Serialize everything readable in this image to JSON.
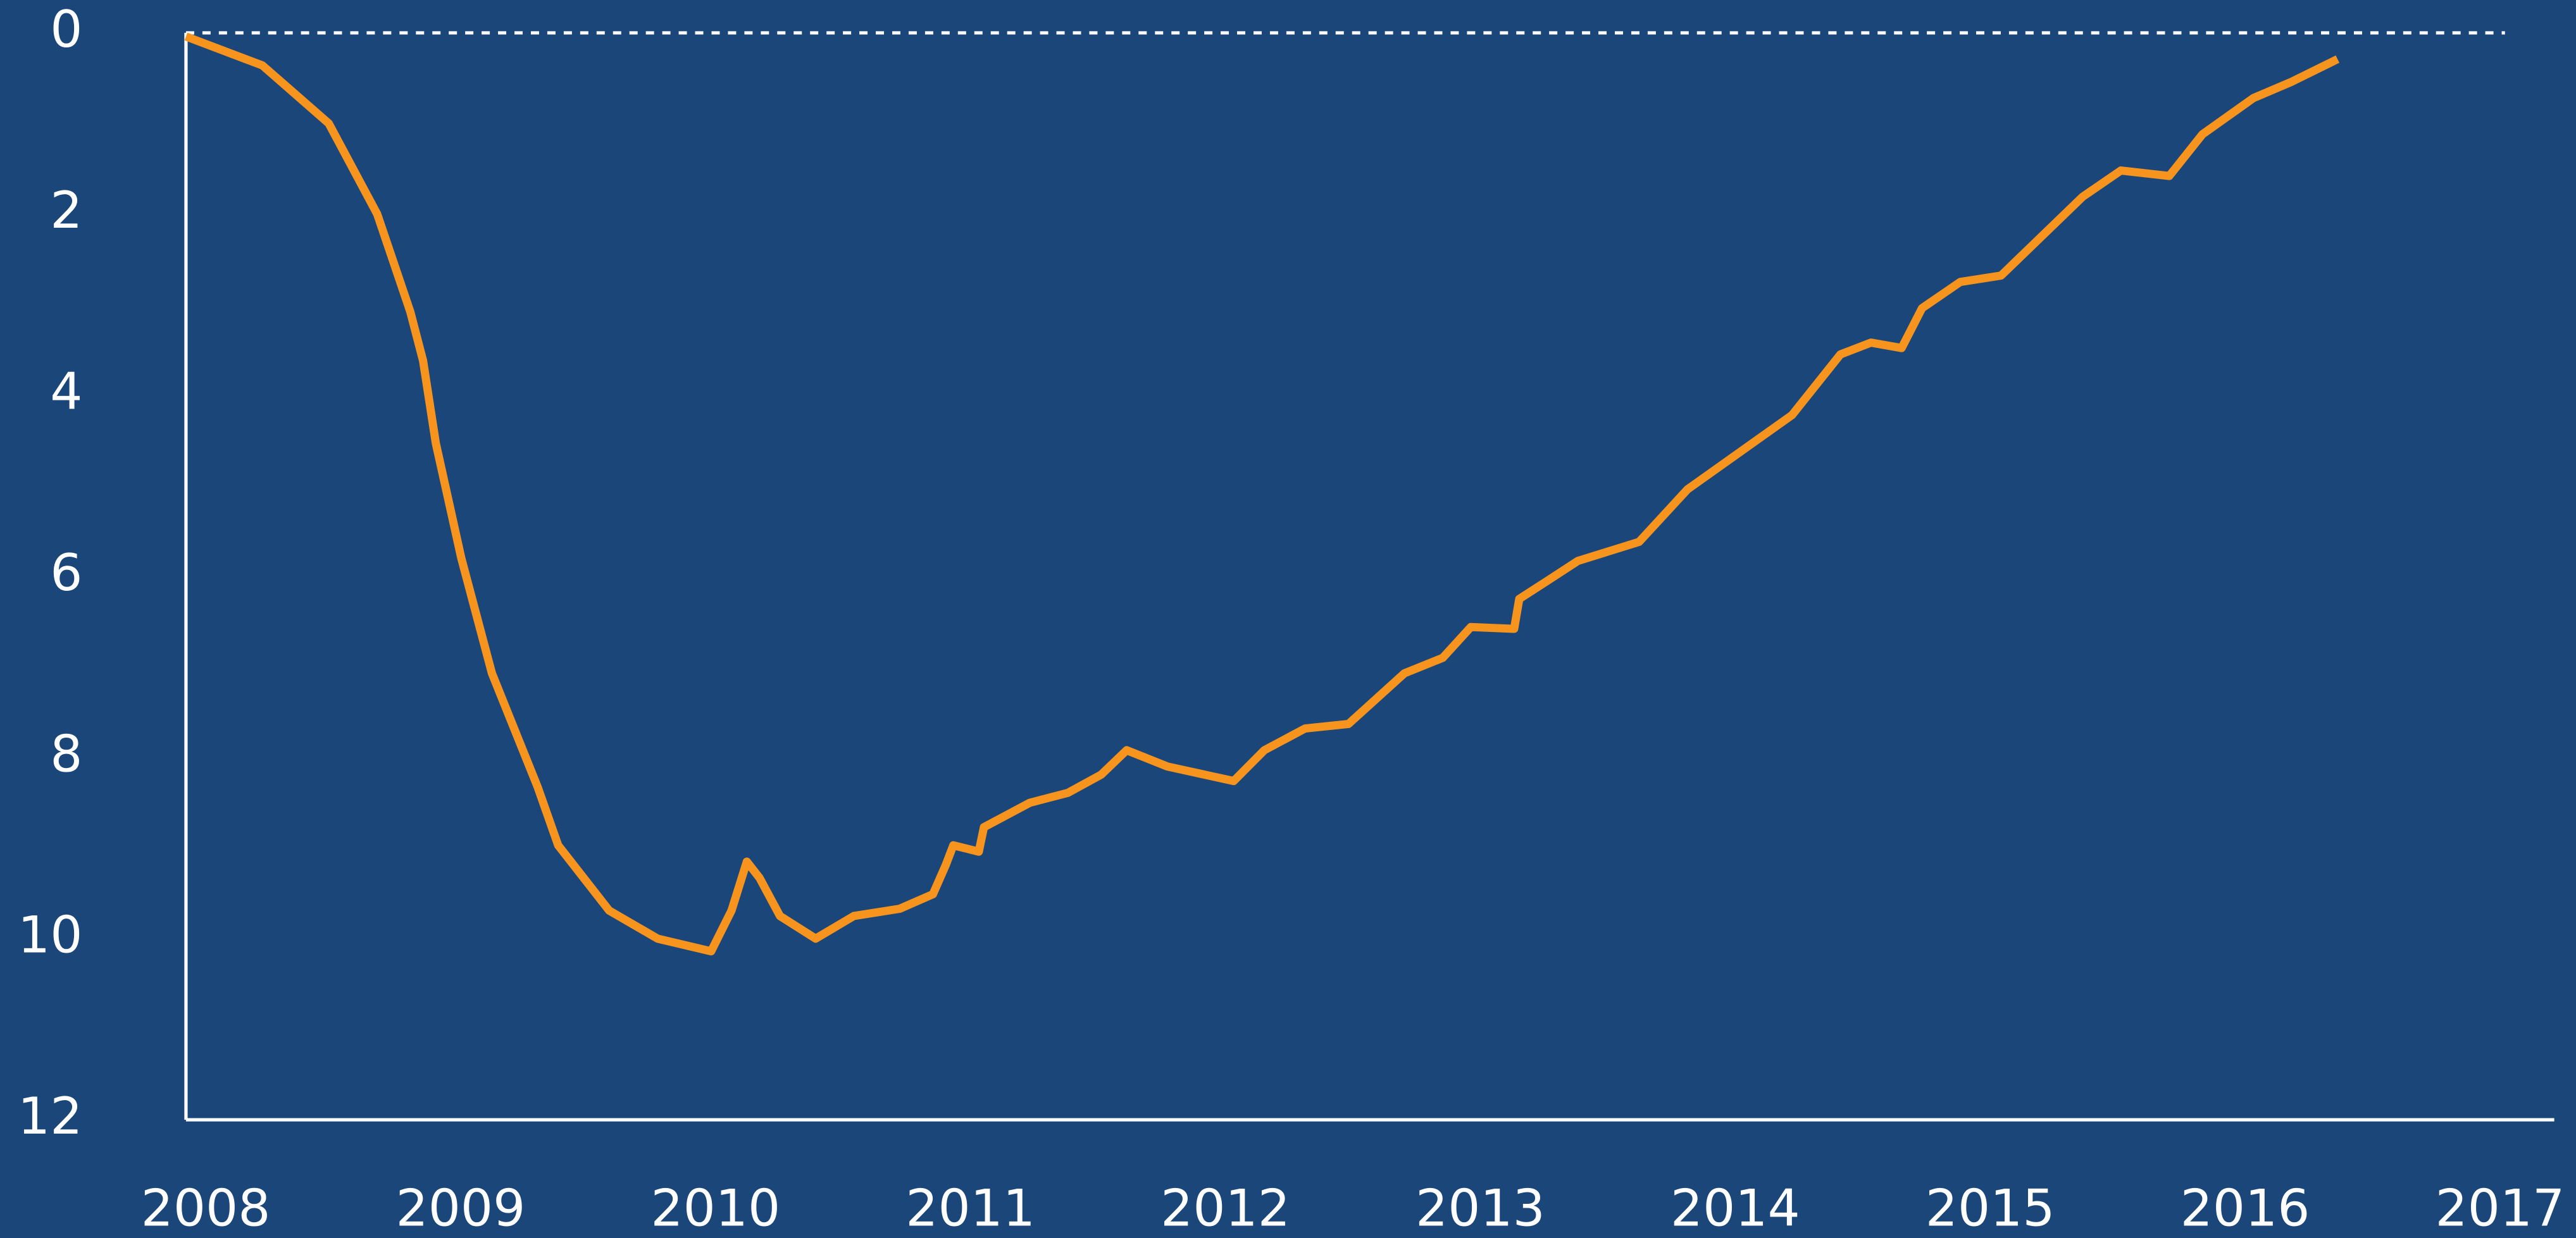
{
  "chart_data": {
    "type": "line",
    "x": [
      2008.0,
      2008.3,
      2008.56,
      2008.75,
      2008.88,
      2008.93,
      2008.98,
      2009.08,
      2009.2,
      2009.38,
      2009.46,
      2009.66,
      2009.85,
      2010.06,
      2010.14,
      2010.2,
      2010.25,
      2010.33,
      2010.47,
      2010.62,
      2010.8,
      2010.93,
      2010.98,
      2011.01,
      2011.11,
      2011.13,
      2011.31,
      2011.46,
      2011.59,
      2011.69,
      2011.85,
      2012.11,
      2012.23,
      2012.39,
      2012.56,
      2012.78,
      2012.93,
      2013.04,
      2013.21,
      2013.23,
      2013.34,
      2013.46,
      2013.7,
      2013.89,
      2014.3,
      2014.49,
      2014.61,
      2014.73,
      2014.81,
      2014.96,
      2015.12,
      2015.44,
      2015.59,
      2015.78,
      2015.91,
      2016.11,
      2016.26,
      2016.44
    ],
    "series": [
      {
        "color": "#f7941d",
        "values": [
          0.04,
          0.36,
          1.0,
          2.0,
          3.08,
          3.62,
          4.53,
          5.8,
          7.07,
          8.33,
          8.97,
          9.69,
          10.0,
          10.14,
          9.69,
          9.15,
          9.33,
          9.75,
          10.0,
          9.75,
          9.67,
          9.51,
          9.19,
          8.97,
          9.04,
          8.77,
          8.5,
          8.39,
          8.19,
          7.92,
          8.1,
          8.26,
          7.92,
          7.68,
          7.63,
          7.07,
          6.9,
          6.56,
          6.58,
          6.25,
          6.05,
          5.83,
          5.62,
          5.04,
          4.22,
          3.55,
          3.42,
          3.48,
          3.04,
          2.75,
          2.68,
          1.81,
          1.52,
          1.58,
          1.12,
          0.72,
          0.54,
          0.29
        ]
      }
    ],
    "xlim": [
      2008,
      2017.29
    ],
    "xticks": [
      2008,
      2009,
      2010,
      2011,
      2012,
      2013,
      2014,
      2015,
      2016,
      2017
    ],
    "ylim": [
      12,
      0
    ],
    "yticks": [
      0,
      2,
      4,
      6,
      8,
      10,
      12
    ],
    "reference_line": 0
  }
}
